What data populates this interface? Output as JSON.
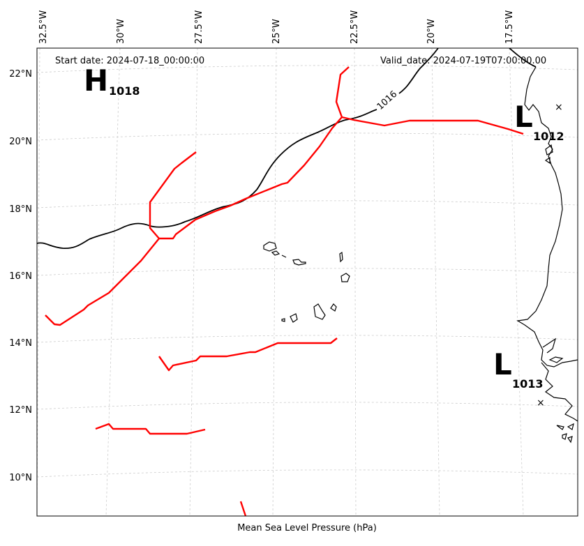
{
  "header": {
    "start_date": "Start date: 2024-07-18_00:00:00",
    "valid_date": "Valid_date: 2024-07-19T07:00:00.00"
  },
  "footer": {
    "caption": "Mean Sea Level Pressure (hPa)"
  },
  "longitude_labels": [
    "32.5°W",
    "30°W",
    "27.5°W",
    "25°W",
    "22.5°W",
    "20°W",
    "17.5°W"
  ],
  "latitude_labels": [
    "22°N",
    "20°N",
    "18°N",
    "16°N",
    "14°N",
    "12°N",
    "10°N"
  ],
  "isobar": {
    "label": "1016",
    "color": "#000000"
  },
  "pressure_centers": [
    {
      "symbol": "H",
      "value": "1018"
    },
    {
      "symbol": "L",
      "value": "1012"
    },
    {
      "symbol": "L",
      "value": "1013"
    }
  ],
  "trough_color": "#ff0000"
}
